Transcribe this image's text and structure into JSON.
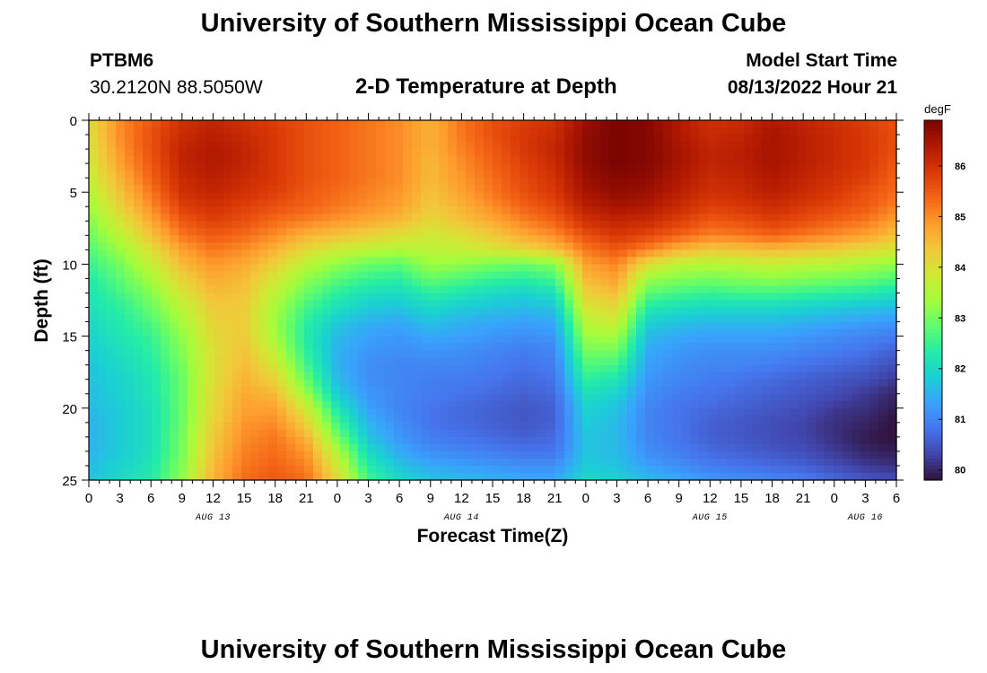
{
  "header": {
    "title": "University of Southern Mississippi Ocean Cube",
    "station_id": "PTBM6",
    "station_coords": "30.2120N  88.5050W",
    "chart_title": "2-D Temperature at Depth",
    "model_start_label": "Model Start Time",
    "model_start_value": "08/13/2022 Hour 21"
  },
  "footer": {
    "title": "University of Southern Mississippi Ocean Cube"
  },
  "colors": {
    "background": "#ffffff",
    "text": "#000000",
    "colormap": [
      "#30123b",
      "#4145ab",
      "#4675ed",
      "#39a2fc",
      "#1bcfd4",
      "#24eca6",
      "#61fc6c",
      "#a4fc3b",
      "#d1e834",
      "#f3c63a",
      "#fe9b2d",
      "#f36315",
      "#d93806",
      "#b11901",
      "#7a0402"
    ]
  },
  "chart_data": {
    "type": "heatmap",
    "title": "2-D Temperature at Depth",
    "xlabel": "Forecast Time(Z)",
    "ylabel": "Depth (ft)",
    "colorbar_label": "degF",
    "x_start_hour": 0,
    "x_end_hour": 78,
    "x_tick_step_hours": 3,
    "x_tick_labels": [
      "0",
      "3",
      "6",
      "9",
      "12",
      "15",
      "18",
      "21",
      "0",
      "3",
      "6",
      "9",
      "12",
      "15",
      "18",
      "21",
      "0",
      "3",
      "6",
      "9",
      "12",
      "15",
      "18",
      "21",
      "0",
      "3",
      "6"
    ],
    "date_labels": [
      {
        "label": "AUG 13",
        "hour": 12
      },
      {
        "label": "AUG 14",
        "hour": 36
      },
      {
        "label": "AUG 15",
        "hour": 60
      },
      {
        "label": "AUG 16",
        "hour": 75
      }
    ],
    "y_range": [
      0,
      25
    ],
    "y_ticks": [
      0,
      5,
      10,
      15,
      20,
      25
    ],
    "colorbar_range": [
      79.8,
      86.9
    ],
    "colorbar_ticks": [
      80,
      81,
      82,
      83,
      84,
      85,
      86
    ],
    "depth_levels_ft": [
      0,
      1,
      2,
      3,
      4,
      5,
      6,
      7,
      8,
      9,
      10,
      11,
      12,
      13,
      14,
      15,
      16,
      17,
      18,
      19,
      20,
      21,
      22,
      23,
      24,
      25
    ],
    "time_hours": [
      0,
      3,
      6,
      9,
      12,
      15,
      18,
      21,
      24,
      27,
      30,
      33,
      36,
      39,
      42,
      45,
      48,
      51,
      54,
      57,
      60,
      63,
      66,
      69,
      72,
      75,
      78
    ],
    "values_degF": [
      [
        84.0,
        85.0,
        85.5,
        86.0,
        86.2,
        86.0,
        85.8,
        85.6,
        85.4,
        85.2,
        85.0,
        84.6,
        85.2,
        85.6,
        85.8,
        86.0,
        86.6,
        86.9,
        86.8,
        86.4,
        86.0,
        86.1,
        86.4,
        86.2,
        86.0,
        85.8,
        85.6
      ],
      [
        84.0,
        85.0,
        85.6,
        86.1,
        86.3,
        86.1,
        85.9,
        85.6,
        85.4,
        85.2,
        85.0,
        84.6,
        85.2,
        85.6,
        85.9,
        86.1,
        86.7,
        86.9,
        86.8,
        86.4,
        86.1,
        86.2,
        86.5,
        86.3,
        86.1,
        85.9,
        85.6
      ],
      [
        83.9,
        84.9,
        85.6,
        86.2,
        86.4,
        86.2,
        85.9,
        85.6,
        85.4,
        85.2,
        85.0,
        84.6,
        85.1,
        85.5,
        85.9,
        86.2,
        86.7,
        86.9,
        86.8,
        86.5,
        86.2,
        86.3,
        86.5,
        86.3,
        86.1,
        85.9,
        85.6
      ],
      [
        83.8,
        84.8,
        85.5,
        86.2,
        86.4,
        86.2,
        85.9,
        85.6,
        85.4,
        85.2,
        85.0,
        84.5,
        85.0,
        85.4,
        85.8,
        86.1,
        86.7,
        86.9,
        86.8,
        86.5,
        86.2,
        86.3,
        86.5,
        86.3,
        86.1,
        85.9,
        85.5
      ],
      [
        83.7,
        84.6,
        85.4,
        86.1,
        86.3,
        86.1,
        85.9,
        85.6,
        85.4,
        85.2,
        85.0,
        84.5,
        84.9,
        85.3,
        85.7,
        86.0,
        86.6,
        86.8,
        86.7,
        86.4,
        86.1,
        86.2,
        86.4,
        86.2,
        86.0,
        85.8,
        85.4
      ],
      [
        83.5,
        84.4,
        85.2,
        86.0,
        86.2,
        86.0,
        85.8,
        85.5,
        85.3,
        85.1,
        84.9,
        84.4,
        84.8,
        85.2,
        85.6,
        85.9,
        86.5,
        86.7,
        86.6,
        86.3,
        86.0,
        86.1,
        86.3,
        86.1,
        85.9,
        85.6,
        85.3
      ],
      [
        83.3,
        84.2,
        85.0,
        85.8,
        86.0,
        85.8,
        85.6,
        85.4,
        85.2,
        85.0,
        84.8,
        84.3,
        84.6,
        85.0,
        85.4,
        85.7,
        86.3,
        86.5,
        86.4,
        86.1,
        85.8,
        85.9,
        86.1,
        85.9,
        85.7,
        85.5,
        85.1
      ],
      [
        83.1,
        83.9,
        84.7,
        85.5,
        85.8,
        85.6,
        85.3,
        85.1,
        84.9,
        84.7,
        84.5,
        84.1,
        84.4,
        84.7,
        85.1,
        85.4,
        86.0,
        86.2,
        86.1,
        85.8,
        85.5,
        85.6,
        85.8,
        85.6,
        85.4,
        85.2,
        84.8
      ],
      [
        82.9,
        83.6,
        84.4,
        85.2,
        85.5,
        85.3,
        85.0,
        84.6,
        84.4,
        84.2,
        84.0,
        83.8,
        84.0,
        84.3,
        84.7,
        85.0,
        85.6,
        85.9,
        85.7,
        85.4,
        85.1,
        85.2,
        85.4,
        85.2,
        85.0,
        84.8,
        84.4
      ],
      [
        82.7,
        83.3,
        84.0,
        84.8,
        85.2,
        85.0,
        84.6,
        84.1,
        83.8,
        83.6,
        83.5,
        83.6,
        83.7,
        83.9,
        84.1,
        84.4,
        85.2,
        85.5,
        85.1,
        84.6,
        84.3,
        84.4,
        84.5,
        84.4,
        84.3,
        84.1,
        83.9
      ],
      [
        82.5,
        83.0,
        83.7,
        84.5,
        84.9,
        84.7,
        84.2,
        83.6,
        83.2,
        82.9,
        82.8,
        83.3,
        83.2,
        83.0,
        82.9,
        83.1,
        84.8,
        85.1,
        84.0,
        83.6,
        83.5,
        83.6,
        83.7,
        83.6,
        83.5,
        83.4,
        83.2
      ],
      [
        82.3,
        82.8,
        83.4,
        84.2,
        84.7,
        84.5,
        83.9,
        83.2,
        82.8,
        82.5,
        82.4,
        82.9,
        82.7,
        82.5,
        82.4,
        82.6,
        84.5,
        84.8,
        83.3,
        83.1,
        83.0,
        83.1,
        83.2,
        83.1,
        83.0,
        82.9,
        82.7
      ],
      [
        82.2,
        82.6,
        83.1,
        83.9,
        84.5,
        84.4,
        83.6,
        82.9,
        82.4,
        82.1,
        82.0,
        82.4,
        82.2,
        82.0,
        81.9,
        82.1,
        84.2,
        84.5,
        82.8,
        82.6,
        82.5,
        82.6,
        82.6,
        82.5,
        82.4,
        82.3,
        82.1
      ],
      [
        82.1,
        82.4,
        82.9,
        83.6,
        84.3,
        84.3,
        83.4,
        82.6,
        82.1,
        81.8,
        81.7,
        82.0,
        81.8,
        81.7,
        81.6,
        81.7,
        83.9,
        84.1,
        82.3,
        82.1,
        82.0,
        82.0,
        82.0,
        81.9,
        81.8,
        81.7,
        81.6
      ],
      [
        82.0,
        82.3,
        82.7,
        83.4,
        84.2,
        84.3,
        83.3,
        82.4,
        81.8,
        81.5,
        81.4,
        81.7,
        81.5,
        81.4,
        81.3,
        81.4,
        83.6,
        83.8,
        81.9,
        81.7,
        81.6,
        81.6,
        81.6,
        81.5,
        81.4,
        81.3,
        81.2
      ],
      [
        81.9,
        82.2,
        82.5,
        83.2,
        84.1,
        84.3,
        83.4,
        82.3,
        81.6,
        81.3,
        81.2,
        81.4,
        81.3,
        81.2,
        81.1,
        81.2,
        83.3,
        83.4,
        81.6,
        81.4,
        81.3,
        81.3,
        81.3,
        81.2,
        81.1,
        81.0,
        80.9
      ],
      [
        81.8,
        82.1,
        82.4,
        83.1,
        84.0,
        84.4,
        83.6,
        82.4,
        81.5,
        81.2,
        81.1,
        81.2,
        81.1,
        81.0,
        80.9,
        81.0,
        83.0,
        83.0,
        81.4,
        81.2,
        81.1,
        81.1,
        81.1,
        81.0,
        80.9,
        80.8,
        80.6
      ],
      [
        81.7,
        82.0,
        82.3,
        83.0,
        84.0,
        84.5,
        83.9,
        82.6,
        81.5,
        81.1,
        81.0,
        81.0,
        81.0,
        80.9,
        80.8,
        80.9,
        82.7,
        82.6,
        81.3,
        81.1,
        81.0,
        81.0,
        80.9,
        80.8,
        80.7,
        80.6,
        80.4
      ],
      [
        81.7,
        81.9,
        82.2,
        82.9,
        84.0,
        84.6,
        84.2,
        82.9,
        81.6,
        81.1,
        81.0,
        80.9,
        80.9,
        80.8,
        80.7,
        80.8,
        82.4,
        82.2,
        81.2,
        81.0,
        80.9,
        80.8,
        80.7,
        80.6,
        80.5,
        80.4,
        80.2
      ],
      [
        81.6,
        81.9,
        82.2,
        82.9,
        84.1,
        84.7,
        84.5,
        83.3,
        81.8,
        81.2,
        81.0,
        80.9,
        80.8,
        80.7,
        80.6,
        80.7,
        82.1,
        81.9,
        81.1,
        80.9,
        80.8,
        80.7,
        80.6,
        80.5,
        80.4,
        80.2,
        80.0
      ],
      [
        81.6,
        81.8,
        82.1,
        82.9,
        84.1,
        84.8,
        84.8,
        83.8,
        82.2,
        81.3,
        81.0,
        80.8,
        80.7,
        80.6,
        80.5,
        80.6,
        81.9,
        81.7,
        81.0,
        80.8,
        80.7,
        80.6,
        80.5,
        80.4,
        80.2,
        80.1,
        79.9
      ],
      [
        81.5,
        81.8,
        82.1,
        82.9,
        84.2,
        84.9,
        85.0,
        84.2,
        82.6,
        81.5,
        81.1,
        80.8,
        80.7,
        80.6,
        80.5,
        80.6,
        81.8,
        81.6,
        81.0,
        80.8,
        80.6,
        80.5,
        80.4,
        80.3,
        80.1,
        80.0,
        79.8
      ],
      [
        81.5,
        81.8,
        82.1,
        83.0,
        84.3,
        85.0,
        85.2,
        84.6,
        83.0,
        81.7,
        81.2,
        80.9,
        80.8,
        80.7,
        80.6,
        80.7,
        81.7,
        81.6,
        81.0,
        80.8,
        80.6,
        80.5,
        80.4,
        80.3,
        80.1,
        79.9,
        79.8
      ],
      [
        81.5,
        81.8,
        82.1,
        83.0,
        84.4,
        85.1,
        85.3,
        84.9,
        83.5,
        82.0,
        81.4,
        81.1,
        81.0,
        80.9,
        80.8,
        80.8,
        81.7,
        81.6,
        81.1,
        80.9,
        80.7,
        80.6,
        80.5,
        80.4,
        80.2,
        80.0,
        79.9
      ],
      [
        81.6,
        81.9,
        82.2,
        83.1,
        84.5,
        85.2,
        85.4,
        85.1,
        83.8,
        82.3,
        81.7,
        81.4,
        81.3,
        81.2,
        81.1,
        81.1,
        81.8,
        81.7,
        81.3,
        81.1,
        80.9,
        80.8,
        80.7,
        80.6,
        80.4,
        80.2,
        80.1
      ],
      [
        81.7,
        82.0,
        82.3,
        83.2,
        84.6,
        85.3,
        85.5,
        85.3,
        84.1,
        82.6,
        82.0,
        81.7,
        81.6,
        81.5,
        81.4,
        81.4,
        82.0,
        81.9,
        81.6,
        81.4,
        81.2,
        81.1,
        81.0,
        80.9,
        80.7,
        80.5,
        80.4
      ]
    ]
  }
}
